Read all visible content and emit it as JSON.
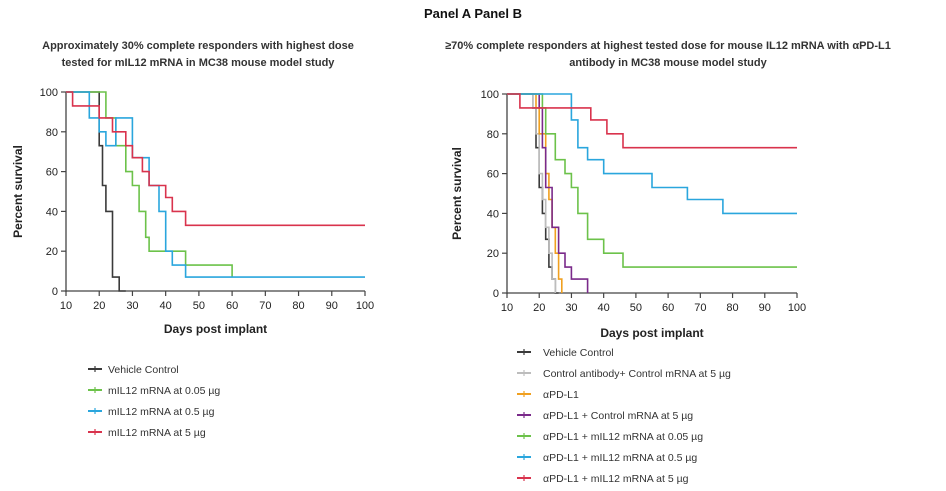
{
  "page_title": "Panel A Panel B",
  "chart_data": [
    {
      "type": "line",
      "subtype": "step",
      "title": "Approximately 30% complete responders with highest dose tested for mIL12 mRNA in MC38 mouse model study",
      "xlabel": "Days post implant",
      "ylabel": "Percent survival",
      "xlim": [
        10,
        100
      ],
      "ylim": [
        0,
        100
      ],
      "xticks": [
        10,
        20,
        30,
        40,
        50,
        60,
        70,
        80,
        90,
        100
      ],
      "yticks": [
        0,
        20,
        40,
        60,
        80,
        100
      ],
      "grid": false,
      "legend_position": "bottom",
      "series": [
        {
          "name": "Vehicle Control",
          "color": "#3a3a3a",
          "x": [
            10,
            20,
            21,
            22,
            24,
            26,
            28
          ],
          "y": [
            100,
            73,
            53,
            40,
            7,
            0,
            0
          ]
        },
        {
          "name": "mIL12 mRNA at 0.05 µg",
          "color": "#6cc24a",
          "x": [
            10,
            22,
            25,
            28,
            30,
            32,
            34,
            35,
            46,
            60
          ],
          "y": [
            100,
            87,
            73,
            60,
            53,
            40,
            27,
            20,
            13,
            7
          ]
        },
        {
          "name": "mIL12 mRNA at 0.5 µg",
          "color": "#2aa6dd",
          "x": [
            10,
            17,
            20,
            22,
            25,
            30,
            35,
            38,
            40,
            42,
            46,
            100
          ],
          "y": [
            100,
            87,
            80,
            73,
            87,
            67,
            53,
            40,
            20,
            13,
            7,
            7
          ]
        },
        {
          "name": "mIL12 mRNA at 5 µg",
          "color": "#d9334d",
          "x": [
            10,
            12,
            20,
            24,
            28,
            30,
            33,
            35,
            40,
            42,
            44,
            46,
            100
          ],
          "y": [
            100,
            93,
            87,
            80,
            73,
            67,
            60,
            53,
            47,
            40,
            40,
            33,
            33
          ]
        }
      ]
    },
    {
      "type": "line",
      "subtype": "step",
      "title": "≥70% complete responders at highest tested dose for mouse IL12 mRNA with αPD-L1 antibody in MC38 mouse model study",
      "xlabel": "Days post implant",
      "ylabel": "Percent survival",
      "xlim": [
        10,
        100
      ],
      "ylim": [
        0,
        100
      ],
      "xticks": [
        10,
        20,
        30,
        40,
        50,
        60,
        70,
        80,
        90,
        100
      ],
      "yticks": [
        0,
        20,
        40,
        60,
        80,
        100
      ],
      "grid": false,
      "legend_position": "bottom",
      "series": [
        {
          "name": "Vehicle Control",
          "color": "#3a3a3a",
          "x": [
            10,
            18,
            19,
            20,
            21,
            22,
            23,
            24,
            25,
            26
          ],
          "y": [
            100,
            93,
            73,
            53,
            40,
            27,
            13,
            7,
            0,
            0
          ]
        },
        {
          "name": "Control antibody+ Control mRNA at 5 µg",
          "color": "#bdbdbd",
          "x": [
            10,
            18,
            19,
            20,
            21,
            22,
            23,
            24,
            25
          ],
          "y": [
            100,
            93,
            80,
            60,
            47,
            33,
            20,
            7,
            0
          ]
        },
        {
          "name": "αPD-L1",
          "color": "#f0a020",
          "x": [
            10,
            19,
            20,
            22,
            23,
            24,
            25,
            26,
            27
          ],
          "y": [
            100,
            93,
            80,
            60,
            47,
            33,
            20,
            7,
            0
          ]
        },
        {
          "name": "αPD-L1 + Control mRNA at 5 µg",
          "color": "#7a2a8a",
          "x": [
            10,
            20,
            21,
            22,
            24,
            26,
            28,
            30,
            35
          ],
          "y": [
            100,
            93,
            73,
            53,
            33,
            20,
            13,
            7,
            0
          ]
        },
        {
          "name": "αPD-L1 + mIL12 mRNA at 0.05 µg",
          "color": "#6cc24a",
          "x": [
            10,
            21,
            22,
            25,
            28,
            30,
            32,
            35,
            40,
            46,
            100
          ],
          "y": [
            100,
            93,
            80,
            67,
            60,
            53,
            40,
            27,
            20,
            13,
            13
          ]
        },
        {
          "name": "αPD-L1 + mIL12 mRNA at 0.5 µg",
          "color": "#2aa6dd",
          "x": [
            10,
            20,
            30,
            32,
            35,
            40,
            55,
            66,
            77,
            100
          ],
          "y": [
            100,
            100,
            87,
            73,
            67,
            60,
            53,
            47,
            40,
            40
          ]
        },
        {
          "name": "αPD-L1 + mIL12 mRNA at 5 µg",
          "color": "#d9334d",
          "x": [
            10,
            14,
            23,
            36,
            41,
            46,
            100
          ],
          "y": [
            100,
            93,
            93,
            87,
            80,
            73,
            73
          ]
        }
      ]
    }
  ]
}
